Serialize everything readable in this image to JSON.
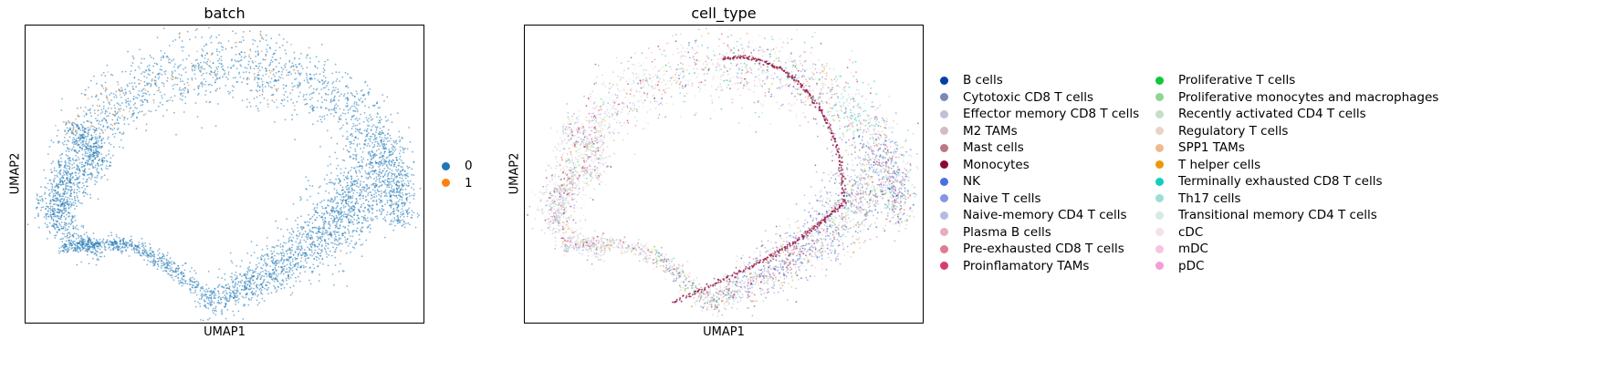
{
  "chart_data": [
    {
      "type": "scatter",
      "title": "batch",
      "xlabel": "UMAP1",
      "ylabel": "UMAP2",
      "grid": false,
      "ticks": false,
      "legend_position": "right",
      "series": [
        {
          "name": "0",
          "color": "#1f77b4"
        },
        {
          "name": "1",
          "color": "#ff7f0e"
        }
      ]
    },
    {
      "type": "scatter",
      "title": "cell_type",
      "xlabel": "UMAP1",
      "ylabel": "UMAP2",
      "grid": false,
      "ticks": false,
      "legend_position": "right",
      "series": [
        {
          "name": "B cells",
          "color": "#023fa5"
        },
        {
          "name": "Cytotoxic CD8 T cells",
          "color": "#7d87b9"
        },
        {
          "name": "Effector memory CD8 T cells",
          "color": "#bec1d4"
        },
        {
          "name": "M2 TAMs",
          "color": "#d6bcc0"
        },
        {
          "name": "Mast cells",
          "color": "#bb7784"
        },
        {
          "name": "Monocytes",
          "color": "#8e063b"
        },
        {
          "name": "NK",
          "color": "#4a6fe3"
        },
        {
          "name": "Naive T cells",
          "color": "#8595e1"
        },
        {
          "name": "Naive-memory CD4 T cells",
          "color": "#b5bbe3"
        },
        {
          "name": "Plasma B cells",
          "color": "#e6afb9"
        },
        {
          "name": "Pre-exhausted CD8 T cells",
          "color": "#e07b91"
        },
        {
          "name": "Proinflamatory TAMs",
          "color": "#d33f6a"
        },
        {
          "name": "Proliferative T cells",
          "color": "#11c638"
        },
        {
          "name": "Proliferative monocytes and macrophages",
          "color": "#8dd593"
        },
        {
          "name": "Recently activated CD4 T cells",
          "color": "#c6dec7"
        },
        {
          "name": "Regulatory T cells",
          "color": "#ead3c6"
        },
        {
          "name": "SPP1 TAMs",
          "color": "#f0b98d"
        },
        {
          "name": "T helper cells",
          "color": "#ef9708"
        },
        {
          "name": "Terminally exhausted CD8 T cells",
          "color": "#0fcfc0"
        },
        {
          "name": "Th17 cells",
          "color": "#9cded6"
        },
        {
          "name": "Transitional memory CD4 T cells",
          "color": "#d5eae7"
        },
        {
          "name": "cDC",
          "color": "#f3e1eb"
        },
        {
          "name": "mDC",
          "color": "#f6c4e1"
        },
        {
          "name": "pDC",
          "color": "#f79cd4"
        }
      ]
    }
  ]
}
